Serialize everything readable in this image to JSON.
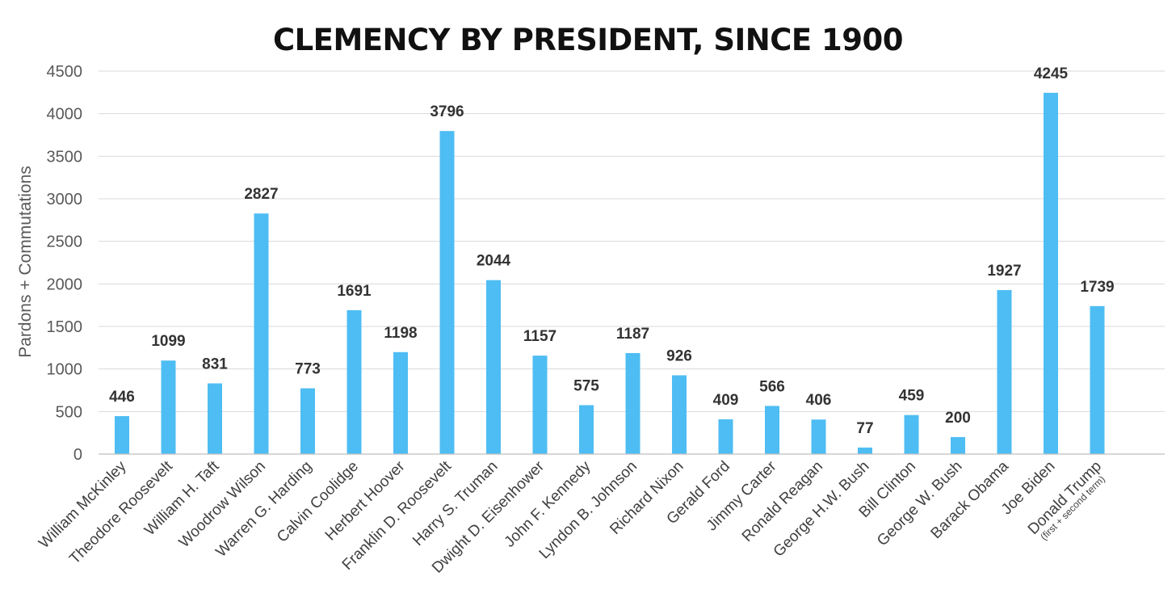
{
  "chart_data": {
    "type": "bar",
    "title": "CLEMENCY BY PRESIDENT, SINCE 1900",
    "xlabel": "",
    "ylabel": "Pardons + Commutations",
    "ylim": [
      0,
      4500
    ],
    "yticks": [
      0,
      500,
      1000,
      1500,
      2000,
      2500,
      3000,
      3500,
      4000,
      4500
    ],
    "grid": true,
    "bar_color": "#4ebdf3",
    "categories": [
      "William McKinley",
      "Theodore Roosevelt",
      "William H. Taft",
      "Woodrow Wilson",
      "Warren G. Harding",
      "Calvin Coolidge",
      "Herbert Hoover",
      "Franklin D. Roosevelt",
      "Harry S. Truman",
      "Dwight D. Eisenhower",
      "John F. Kennedy",
      "Lyndon B. Johnson",
      "Richard Nixon",
      "Gerald Ford",
      "Jimmy Carter",
      "Ronald Reagan",
      "George H.W. Bush",
      "Bill Clinton",
      "George W. Bush",
      "Barack Obama",
      "Joe Biden",
      "Donald Trump"
    ],
    "category_notes": [
      "",
      "",
      "",
      "",
      "",
      "",
      "",
      "",
      "",
      "",
      "",
      "",
      "",
      "",
      "",
      "",
      "",
      "",
      "",
      "",
      "",
      "(first + second term)"
    ],
    "values": [
      446,
      1099,
      831,
      2827,
      773,
      1691,
      1198,
      3796,
      2044,
      1157,
      575,
      1187,
      926,
      409,
      566,
      406,
      77,
      459,
      200,
      1927,
      4245,
      1739
    ]
  }
}
